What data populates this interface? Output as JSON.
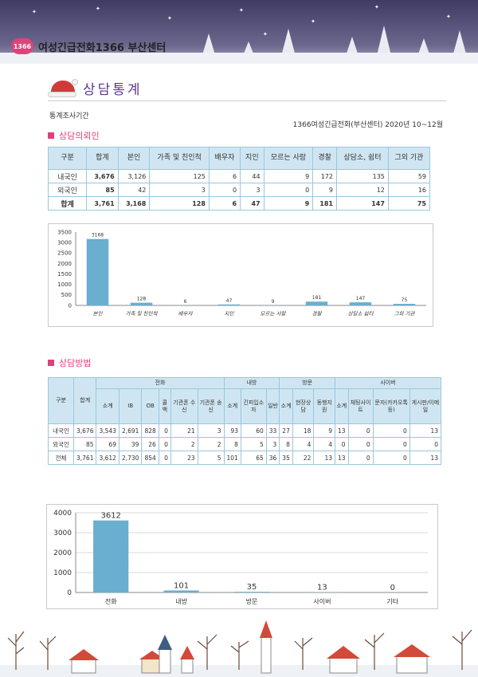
{
  "header": {
    "logo_text": "1366",
    "center_name": "여성긴급전화1366 부산센터"
  },
  "page_title": "상담통계",
  "period": {
    "label": "통계조사기간",
    "value": "1366여성긴급전화(부산센터) 2020년 10~12월"
  },
  "section1": {
    "heading": "상담의뢰인",
    "columns": [
      "구분",
      "합계",
      "본인",
      "가족 및 친인척",
      "배우자",
      "지인",
      "모르는 사람",
      "경찰",
      "상담소, 쉼터",
      "그외 기관"
    ],
    "rows": [
      {
        "label": "내국인",
        "values": [
          "3,676",
          "3,126",
          "125",
          "6",
          "44",
          "9",
          "172",
          "135",
          "59"
        ]
      },
      {
        "label": "외국인",
        "values": [
          "85",
          "42",
          "3",
          "0",
          "3",
          "0",
          "9",
          "12",
          "16"
        ]
      },
      {
        "label": "합계",
        "values": [
          "3,761",
          "3,168",
          "128",
          "6",
          "47",
          "9",
          "181",
          "147",
          "75"
        ]
      }
    ]
  },
  "section2": {
    "heading": "상담방법",
    "group_headers": {
      "row": "구분",
      "total": "합계",
      "phone": "전화",
      "visit_in": "내방",
      "visit_out": "방문",
      "cyber": "사이버"
    },
    "sub_headers": [
      "소계",
      "IB",
      "OB",
      "콜백",
      "기관폰 수신",
      "기관폰 송신",
      "소계",
      "긴피입소자",
      "일반",
      "소계",
      "현장상담",
      "동행지원",
      "소계",
      "채팅사이트",
      "문자(카카오톡등)",
      "게시판/이메일"
    ],
    "rows": [
      {
        "label": "내국인",
        "values": [
          "3,676",
          "3,543",
          "2,691",
          "828",
          "0",
          "21",
          "3",
          "93",
          "60",
          "33",
          "27",
          "18",
          "9",
          "13",
          "0",
          "0",
          "13"
        ]
      },
      {
        "label": "외국인",
        "values": [
          "85",
          "69",
          "39",
          "26",
          "0",
          "2",
          "2",
          "8",
          "5",
          "3",
          "8",
          "4",
          "4",
          "0",
          "0",
          "0",
          "0"
        ]
      },
      {
        "label": "전체",
        "values": [
          "3,761",
          "3,612",
          "2,730",
          "854",
          "0",
          "23",
          "5",
          "101",
          "65",
          "36",
          "35",
          "22",
          "13",
          "13",
          "0",
          "0",
          "13"
        ]
      }
    ]
  },
  "colors": {
    "bar": "#6aaed0",
    "accent": "#e0407a",
    "title": "#5c3b86"
  },
  "chart_data": [
    {
      "type": "bar",
      "categories": [
        "본인",
        "가족 및 친인척",
        "배우자",
        "지인",
        "모르는 사람",
        "경찰",
        "상담소 쉼터",
        "그외 기관"
      ],
      "values": [
        3168,
        128,
        6,
        47,
        9,
        181,
        147,
        75
      ],
      "yticks": [
        "3500",
        "3000",
        "2500",
        "2000",
        "1500",
        "1000",
        "500",
        "0"
      ],
      "ylim": [
        0,
        3500
      ],
      "grid": false
    },
    {
      "type": "bar",
      "categories": [
        "전화",
        "내방",
        "방문",
        "사이버",
        "기타"
      ],
      "values": [
        3612,
        101,
        35,
        13,
        0
      ],
      "yticks": [
        "4000",
        "3000",
        "2000",
        "1000",
        "0"
      ],
      "ylim": [
        0,
        4000
      ],
      "grid": true
    }
  ]
}
